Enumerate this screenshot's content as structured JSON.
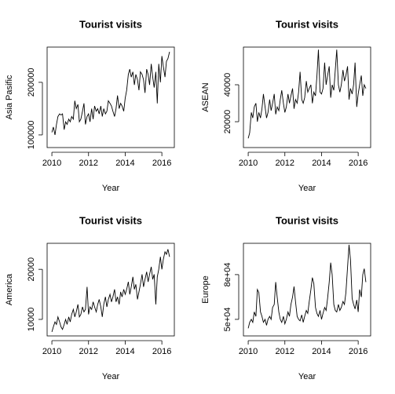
{
  "chart_data": [
    {
      "type": "line",
      "title": "Tourist visits",
      "x_label": "Year",
      "y_label": "Asia Pasific",
      "color": "#000000",
      "x": [
        2010,
        2010.08,
        2010.17,
        2010.25,
        2010.33,
        2010.42,
        2010.5,
        2010.58,
        2010.67,
        2010.75,
        2010.83,
        2010.92,
        2011,
        2011.08,
        2011.17,
        2011.25,
        2011.33,
        2011.42,
        2011.5,
        2011.58,
        2011.67,
        2011.75,
        2011.83,
        2011.92,
        2012,
        2012.08,
        2012.17,
        2012.25,
        2012.33,
        2012.42,
        2012.5,
        2012.58,
        2012.67,
        2012.75,
        2012.83,
        2012.92,
        2013,
        2013.08,
        2013.17,
        2013.25,
        2013.33,
        2013.42,
        2013.5,
        2013.58,
        2013.67,
        2013.75,
        2013.83,
        2013.92,
        2014,
        2014.08,
        2014.17,
        2014.25,
        2014.33,
        2014.42,
        2014.5,
        2014.58,
        2014.67,
        2014.75,
        2014.83,
        2014.92,
        2015,
        2015.08,
        2015.17,
        2015.25,
        2015.33,
        2015.42,
        2015.5,
        2015.58,
        2015.67,
        2015.75,
        2015.83,
        2015.92,
        2016,
        2016.08,
        2016.17,
        2016.25,
        2016.33,
        2016.42
      ],
      "values": [
        105000,
        115000,
        100000,
        120000,
        135000,
        140000,
        138000,
        140000,
        110000,
        125000,
        120000,
        130000,
        125000,
        135000,
        130000,
        165000,
        150000,
        158000,
        125000,
        130000,
        145000,
        160000,
        120000,
        135000,
        140000,
        125000,
        150000,
        130000,
        155000,
        145000,
        150000,
        140000,
        155000,
        135000,
        150000,
        140000,
        145000,
        165000,
        160000,
        155000,
        145000,
        135000,
        150000,
        175000,
        150000,
        160000,
        155000,
        145000,
        170000,
        185000,
        215000,
        225000,
        210000,
        220000,
        195000,
        215000,
        205000,
        185000,
        220000,
        215000,
        205000,
        180000,
        225000,
        215000,
        195000,
        235000,
        210000,
        190000,
        220000,
        160000,
        235000,
        200000,
        250000,
        230000,
        210000,
        240000,
        245000,
        258000
      ],
      "xlim": [
        2009.74,
        2016.68
      ],
      "xticks": [
        2010,
        2012,
        2014,
        2016
      ],
      "ylim": [
        76000,
        267000
      ],
      "yticks": [
        100000,
        200000
      ]
    },
    {
      "type": "line",
      "title": "Tourist visits",
      "x_label": "Year",
      "y_label": "ASEAN",
      "color": "#000000",
      "x": [
        2010,
        2010.08,
        2010.17,
        2010.25,
        2010.33,
        2010.42,
        2010.5,
        2010.58,
        2010.67,
        2010.75,
        2010.83,
        2010.92,
        2011,
        2011.08,
        2011.17,
        2011.25,
        2011.33,
        2011.42,
        2011.5,
        2011.58,
        2011.67,
        2011.75,
        2011.83,
        2011.92,
        2012,
        2012.08,
        2012.17,
        2012.25,
        2012.33,
        2012.42,
        2012.5,
        2012.58,
        2012.67,
        2012.75,
        2012.83,
        2012.92,
        2013,
        2013.08,
        2013.17,
        2013.25,
        2013.33,
        2013.42,
        2013.5,
        2013.58,
        2013.67,
        2013.75,
        2013.83,
        2013.92,
        2014,
        2014.08,
        2014.17,
        2014.25,
        2014.33,
        2014.42,
        2014.5,
        2014.58,
        2014.67,
        2014.75,
        2014.83,
        2014.92,
        2015,
        2015.08,
        2015.17,
        2015.25,
        2015.33,
        2015.42,
        2015.5,
        2015.58,
        2015.67,
        2015.75,
        2015.83,
        2015.92,
        2016,
        2016.08,
        2016.17,
        2016.25,
        2016.33,
        2016.42
      ],
      "values": [
        11000,
        14000,
        25000,
        22000,
        28000,
        30000,
        20000,
        25000,
        22000,
        27000,
        35000,
        28000,
        22000,
        25000,
        32000,
        26000,
        30000,
        35000,
        24000,
        28000,
        26000,
        32000,
        37000,
        30000,
        25000,
        28000,
        35000,
        30000,
        34000,
        38000,
        27000,
        32000,
        30000,
        36000,
        47000,
        32000,
        30000,
        33000,
        42000,
        36000,
        38000,
        40000,
        30000,
        36000,
        34000,
        45000,
        59000,
        36000,
        35000,
        38000,
        52000,
        40000,
        45000,
        50000,
        33000,
        40000,
        37000,
        48000,
        59000,
        40000,
        36000,
        40000,
        48000,
        42000,
        45000,
        50000,
        32000,
        38000,
        35000,
        40000,
        52000,
        28000,
        35000,
        40000,
        45000,
        34000,
        40000,
        38000
      ],
      "xlim": [
        2009.74,
        2016.68
      ],
      "xticks": [
        2010,
        2012,
        2014,
        2016
      ],
      "ylim": [
        6000,
        60400
      ],
      "yticks": [
        20000,
        40000
      ]
    },
    {
      "type": "line",
      "title": "Tourist visits",
      "x_label": "Year",
      "y_label": "America",
      "color": "#000000",
      "x": [
        2010,
        2010.08,
        2010.17,
        2010.25,
        2010.33,
        2010.42,
        2010.5,
        2010.58,
        2010.67,
        2010.75,
        2010.83,
        2010.92,
        2011,
        2011.08,
        2011.17,
        2011.25,
        2011.33,
        2011.42,
        2011.5,
        2011.58,
        2011.67,
        2011.75,
        2011.83,
        2011.92,
        2012,
        2012.08,
        2012.17,
        2012.25,
        2012.33,
        2012.42,
        2012.5,
        2012.58,
        2012.67,
        2012.75,
        2012.83,
        2012.92,
        2013,
        2013.08,
        2013.17,
        2013.25,
        2013.33,
        2013.42,
        2013.5,
        2013.58,
        2013.67,
        2013.75,
        2013.83,
        2013.92,
        2014,
        2014.08,
        2014.17,
        2014.25,
        2014.33,
        2014.42,
        2014.5,
        2014.58,
        2014.67,
        2014.75,
        2014.83,
        2014.92,
        2015,
        2015.08,
        2015.17,
        2015.25,
        2015.33,
        2015.42,
        2015.5,
        2015.58,
        2015.67,
        2015.75,
        2015.83,
        2015.92,
        2016,
        2016.08,
        2016.17,
        2016.25,
        2016.33,
        2016.42
      ],
      "values": [
        7500,
        8500,
        9500,
        9000,
        10500,
        9500,
        8500,
        8000,
        9000,
        10000,
        9000,
        10500,
        9500,
        11000,
        12000,
        10500,
        11500,
        13000,
        10500,
        11000,
        12500,
        11500,
        12000,
        16500,
        11000,
        12500,
        12000,
        13500,
        12500,
        11500,
        13000,
        14000,
        12500,
        10500,
        13000,
        14500,
        12500,
        14000,
        15000,
        13500,
        14500,
        16000,
        13500,
        14500,
        13000,
        15500,
        14500,
        16000,
        15000,
        16000,
        17500,
        15000,
        16500,
        18500,
        16000,
        17000,
        14000,
        15500,
        17000,
        19000,
        16500,
        18000,
        19500,
        17500,
        19000,
        20500,
        18000,
        19000,
        13000,
        18500,
        20000,
        22500,
        20000,
        22000,
        23500,
        23000,
        24000,
        22500
      ],
      "xlim": [
        2009.74,
        2016.68
      ],
      "xticks": [
        2010,
        2012,
        2014,
        2016
      ],
      "ylim": [
        6700,
        25200
      ],
      "yticks": [
        10000,
        20000
      ]
    },
    {
      "type": "line",
      "title": "Tourist visits",
      "x_label": "Year",
      "y_label": "Europe",
      "color": "#000000",
      "x": [
        2010,
        2010.08,
        2010.17,
        2010.25,
        2010.33,
        2010.42,
        2010.5,
        2010.58,
        2010.67,
        2010.75,
        2010.83,
        2010.92,
        2011,
        2011.08,
        2011.17,
        2011.25,
        2011.33,
        2011.42,
        2011.5,
        2011.58,
        2011.67,
        2011.75,
        2011.83,
        2011.92,
        2012,
        2012.08,
        2012.17,
        2012.25,
        2012.33,
        2012.42,
        2012.5,
        2012.58,
        2012.67,
        2012.75,
        2012.83,
        2012.92,
        2013,
        2013.08,
        2013.17,
        2013.25,
        2013.33,
        2013.42,
        2013.5,
        2013.58,
        2013.67,
        2013.75,
        2013.83,
        2013.92,
        2014,
        2014.08,
        2014.17,
        2014.25,
        2014.33,
        2014.42,
        2014.5,
        2014.58,
        2014.67,
        2014.75,
        2014.83,
        2014.92,
        2015,
        2015.08,
        2015.17,
        2015.25,
        2015.33,
        2015.42,
        2015.5,
        2015.58,
        2015.67,
        2015.75,
        2015.83,
        2015.92,
        2016,
        2016.08,
        2016.17,
        2016.25,
        2016.33,
        2016.42
      ],
      "values": [
        44000,
        48000,
        50000,
        48000,
        55000,
        52000,
        70000,
        68000,
        55000,
        52000,
        48000,
        50000,
        46000,
        50000,
        52000,
        50000,
        58000,
        60000,
        75000,
        65000,
        55000,
        50000,
        48000,
        52000,
        47000,
        50000,
        55000,
        52000,
        60000,
        65000,
        72000,
        62000,
        52000,
        50000,
        49000,
        53000,
        48000,
        52000,
        56000,
        54000,
        62000,
        70000,
        78000,
        74000,
        58000,
        54000,
        52000,
        56000,
        50000,
        54000,
        58000,
        56000,
        64000,
        75000,
        88000,
        80000,
        60000,
        56000,
        55000,
        60000,
        56000,
        58000,
        62000,
        60000,
        68000,
        85000,
        100000,
        90000,
        64000,
        60000,
        57000,
        63000,
        55000,
        70000,
        65000,
        80000,
        84000,
        75000
      ],
      "xlim": [
        2009.74,
        2016.68
      ],
      "xticks": [
        2010,
        2012,
        2014,
        2016
      ],
      "ylim": [
        38900,
        101000
      ],
      "yticks": [
        {
          "value": 50000,
          "label": "5e+04"
        },
        {
          "value": 80000,
          "label": "8e+04"
        }
      ]
    }
  ]
}
